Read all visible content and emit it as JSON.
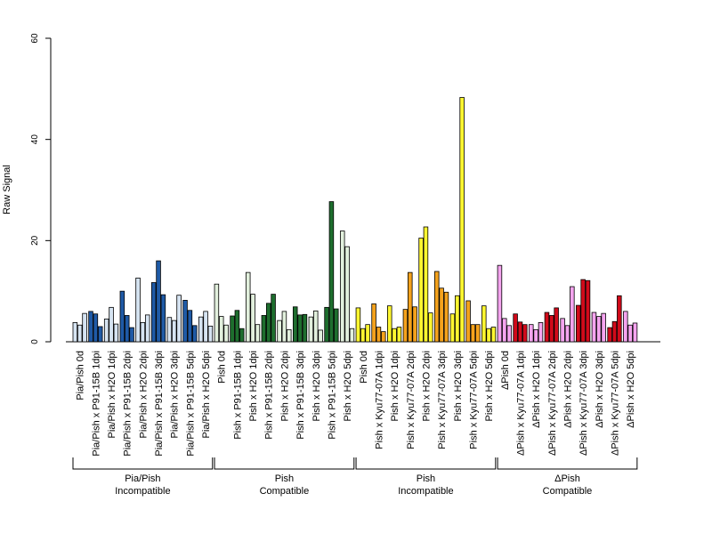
{
  "chart_data": {
    "type": "bar",
    "ylabel": "Raw Signal",
    "ylim": [
      0,
      60
    ],
    "yticks": [
      0,
      20,
      40,
      60
    ],
    "replicates_per_category": 3,
    "categories": [
      {
        "label": "Pia/Pish 0d",
        "values": [
          3.8,
          3.3,
          5.6
        ],
        "color": "#d6e4f2"
      },
      {
        "label": "Pia/Pish x P91-15B 1dpi",
        "values": [
          6.0,
          5.5,
          3.0
        ],
        "color": "#1f5aa6"
      },
      {
        "label": "Pia/Pish x H2O 1dpi",
        "values": [
          4.5,
          6.8,
          3.5
        ],
        "color": "#d6e4f2"
      },
      {
        "label": "Pia/Pish x P91-15B 2dpi",
        "values": [
          10.0,
          5.2,
          2.8
        ],
        "color": "#1f5aa6"
      },
      {
        "label": "Pia/Pish x H2O 2dpi",
        "values": [
          12.6,
          3.8,
          5.3
        ],
        "color": "#d6e4f2"
      },
      {
        "label": "Pia/Pish x P91-15B 3dpi",
        "values": [
          11.7,
          16.0,
          9.3
        ],
        "color": "#1f5aa6"
      },
      {
        "label": "Pia/Pish x H2O 3dpi",
        "values": [
          4.8,
          4.2,
          9.2
        ],
        "color": "#d6e4f2"
      },
      {
        "label": "Pia/Pish x P91-15B 5dpi",
        "values": [
          8.2,
          6.2,
          3.2
        ],
        "color": "#1f5aa6"
      },
      {
        "label": "Pia/Pish x H2O 5dpi",
        "values": [
          4.9,
          6.0,
          3.1
        ],
        "color": "#d6e4f2"
      },
      {
        "label": "Pish 0d",
        "values": [
          11.4,
          5.0,
          3.3
        ],
        "color": "#e2f0dd"
      },
      {
        "label": "Pish x P91-15B 1dpi",
        "values": [
          5.1,
          6.2,
          2.6
        ],
        "color": "#1e6e2e"
      },
      {
        "label": "Pish x H2O 1dpi",
        "values": [
          13.7,
          9.4,
          3.4
        ],
        "color": "#e2f0dd"
      },
      {
        "label": "Pish x P91-15B 2dpi",
        "values": [
          5.2,
          7.6,
          9.4
        ],
        "color": "#1e6e2e"
      },
      {
        "label": "Pish x H2O 2dpi",
        "values": [
          4.2,
          6.0,
          2.4
        ],
        "color": "#e2f0dd"
      },
      {
        "label": "Pish x P91-15B 3dpi",
        "values": [
          6.9,
          5.3,
          5.4
        ],
        "color": "#1e6e2e"
      },
      {
        "label": "Pish x H2O 3dpi",
        "values": [
          4.9,
          6.1,
          2.3
        ],
        "color": "#e2f0dd"
      },
      {
        "label": "Pish x P91-15B 5dpi",
        "values": [
          6.8,
          27.7,
          6.5
        ],
        "color": "#1e6e2e"
      },
      {
        "label": "Pish x H2O 5dpi",
        "values": [
          21.9,
          18.8,
          2.6
        ],
        "color": "#e2f0dd"
      },
      {
        "label": "Pish 0d",
        "values": [
          6.7,
          2.6,
          3.4
        ],
        "color": "#fff730"
      },
      {
        "label": "Pish x Kyu77-07A 1dpi",
        "values": [
          7.5,
          2.9,
          2.0
        ],
        "color": "#f4a21c"
      },
      {
        "label": "Pish x H2O 1dpi",
        "values": [
          7.1,
          2.6,
          2.9
        ],
        "color": "#fff730"
      },
      {
        "label": "Pish x Kyu77-07A 2dpi",
        "values": [
          6.4,
          13.7,
          6.9
        ],
        "color": "#f4a21c"
      },
      {
        "label": "Pish x H2O 2dpi",
        "values": [
          20.5,
          22.7,
          5.7
        ],
        "color": "#fff730"
      },
      {
        "label": "Pish x Kyu77-07A 3dpi",
        "values": [
          13.9,
          10.6,
          9.8
        ],
        "color": "#f4a21c"
      },
      {
        "label": "Pish x H2O 3dpi",
        "values": [
          5.5,
          9.1,
          48.3
        ],
        "color": "#fff730"
      },
      {
        "label": "Pish x Kyu77-07A 5dpi",
        "values": [
          8.1,
          3.4,
          3.4
        ],
        "color": "#f4a21c"
      },
      {
        "label": "Pish x H2O 5dpi",
        "values": [
          7.1,
          2.6,
          2.9
        ],
        "color": "#fff730"
      },
      {
        "label": "ΔPish 0d",
        "values": [
          15.1,
          4.6,
          3.2
        ],
        "color": "#f5a4ef"
      },
      {
        "label": "ΔPish x Kyu77-07A 1dpi",
        "values": [
          5.5,
          3.9,
          3.4
        ],
        "color": "#d10a1a"
      },
      {
        "label": "ΔPish x H2O 1dpi",
        "values": [
          3.4,
          2.4,
          3.8
        ],
        "color": "#f5a4ef"
      },
      {
        "label": "ΔPish x Kyu77-07A 2dpi",
        "values": [
          5.8,
          5.2,
          6.7
        ],
        "color": "#d10a1a"
      },
      {
        "label": "ΔPish x H2O 2dpi",
        "values": [
          4.6,
          3.2,
          10.9
        ],
        "color": "#f5a4ef"
      },
      {
        "label": "ΔPish x Kyu77-07A 3dpi",
        "values": [
          7.2,
          12.3,
          12.1
        ],
        "color": "#d10a1a"
      },
      {
        "label": "ΔPish x H2O 3dpi",
        "values": [
          5.8,
          5.0,
          5.6
        ],
        "color": "#f5a4ef"
      },
      {
        "label": "ΔPish x Kyu77-07A 5dpi",
        "values": [
          2.8,
          4.0,
          9.1
        ],
        "color": "#d10a1a"
      },
      {
        "label": "ΔPish x H2O 5dpi",
        "values": [
          6.0,
          3.3,
          3.7
        ],
        "color": "#f5a4ef"
      }
    ],
    "groups": [
      {
        "line1": "Pia/Pish",
        "line2": "Incompatible",
        "first": 0,
        "last": 8
      },
      {
        "line1": "Pish",
        "line2": "Compatible",
        "first": 9,
        "last": 17
      },
      {
        "line1": "Pish",
        "line2": "Incompatible",
        "first": 18,
        "last": 26
      },
      {
        "line1": "ΔPish",
        "line2": "Compatible",
        "first": 27,
        "last": 35
      }
    ]
  }
}
